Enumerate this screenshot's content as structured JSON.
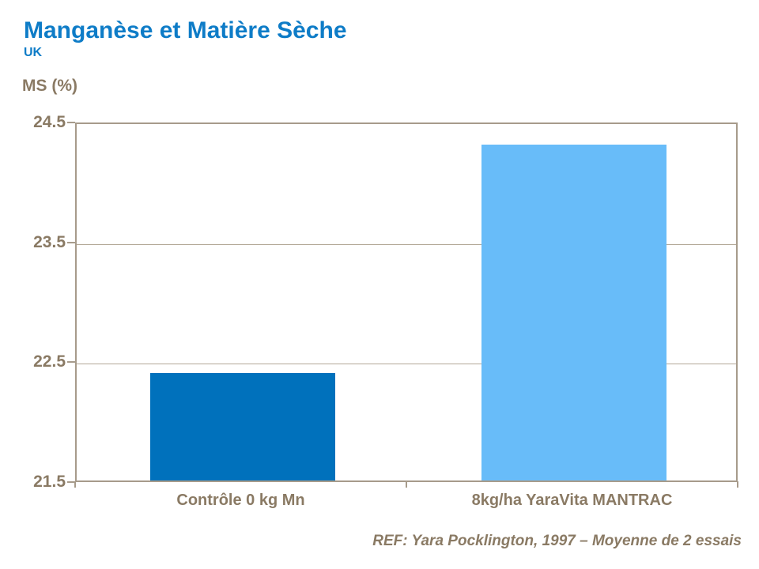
{
  "header": {
    "title": "Manganèse et Matière Sèche",
    "subtitle": "UK"
  },
  "footer": {
    "text": "REF: Yara Pocklington, 1997 – Moyenne de 2 essais"
  },
  "colors": {
    "title_blue": "#0e7cc7",
    "text_brown": "#8a7a64",
    "frame_taupe": "#a79b8b",
    "gridline_taupe": "#b3a897",
    "bar_dark_blue": "#0071bc",
    "bar_light_blue": "#68bcf9"
  },
  "chart_data": {
    "type": "bar",
    "title": "Manganèse et Matière Sèche",
    "subtitle": "UK",
    "xlabel": "",
    "ylabel": "MS (%)",
    "categories": [
      "Contrôle 0 kg Mn",
      "8kg/ha YaraVita MANTRAC"
    ],
    "values": [
      22.4,
      24.3
    ],
    "bar_colors": [
      "#0071bc",
      "#68bcf9"
    ],
    "yticks": [
      21.5,
      22.5,
      23.5,
      24.5
    ],
    "ytick_labels": [
      "21.5",
      "22.5",
      "23.5",
      "24.5"
    ],
    "ylim": [
      21.5,
      24.5
    ],
    "grid": true,
    "legend": false,
    "annotation": "REF: Yara Pocklington, 1997 – Moyenne de 2 essais"
  }
}
